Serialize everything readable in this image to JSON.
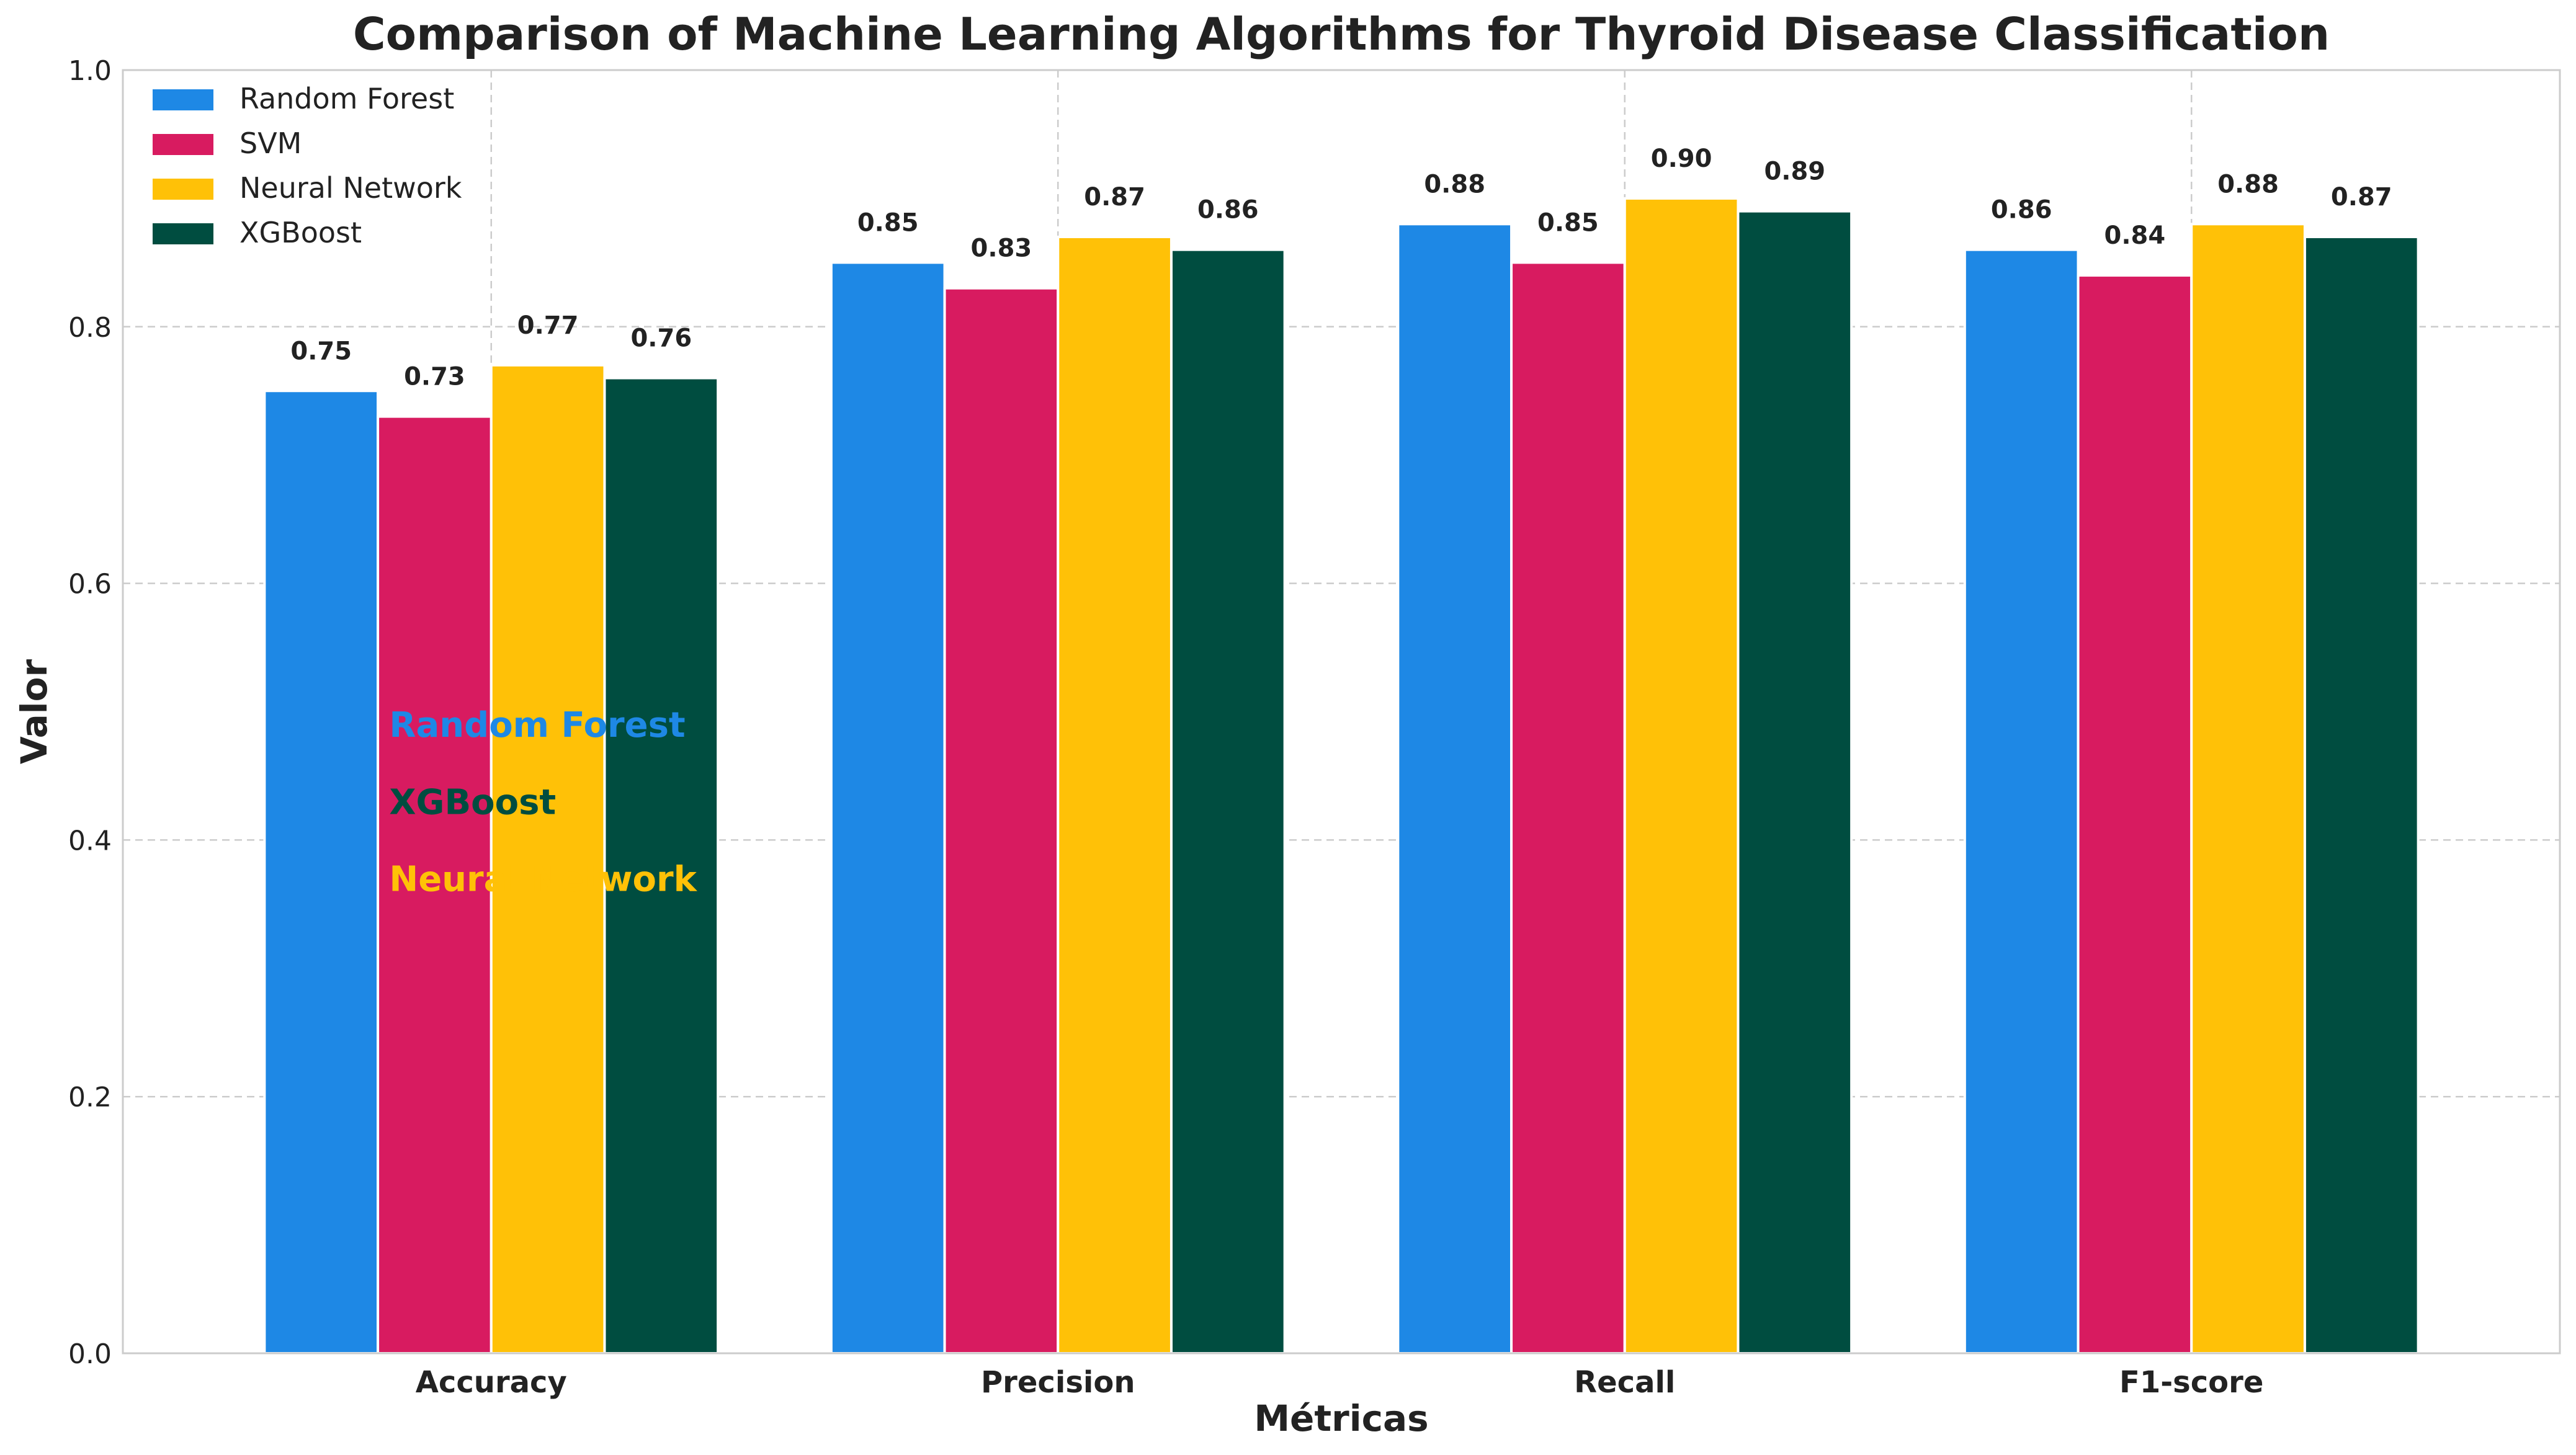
{
  "chart_data": {
    "type": "bar",
    "title": "Comparison of Machine Learning Algorithms for Thyroid Disease Classification",
    "xlabel": "Métricas",
    "ylabel": "Valor",
    "ylim": [
      0,
      1.0
    ],
    "yticks": [
      "0.0",
      "0.2",
      "0.4",
      "0.6",
      "0.8",
      "1.0"
    ],
    "ytick_values": [
      0.0,
      0.2,
      0.4,
      0.6,
      0.8,
      1.0
    ],
    "categories": [
      "Accuracy",
      "Precision",
      "Recall",
      "F1-score"
    ],
    "grid": true,
    "legend_position": "top-left",
    "series": [
      {
        "name": "Random Forest",
        "color": "#1E88E5",
        "values": [
          0.75,
          0.85,
          0.88,
          0.86
        ],
        "labels": [
          "0.75",
          "0.85",
          "0.88",
          "0.86"
        ]
      },
      {
        "name": "SVM",
        "color": "#D81B60",
        "values": [
          0.73,
          0.83,
          0.85,
          0.84
        ],
        "labels": [
          "0.73",
          "0.83",
          "0.85",
          "0.84"
        ]
      },
      {
        "name": "Neural Network",
        "color": "#FFC107",
        "values": [
          0.77,
          0.87,
          0.9,
          0.88
        ],
        "labels": [
          "0.77",
          "0.87",
          "0.90",
          "0.88"
        ]
      },
      {
        "name": "XGBoost",
        "color": "#004D40",
        "values": [
          0.76,
          0.86,
          0.89,
          0.87
        ],
        "labels": [
          "0.76",
          "0.86",
          "0.89",
          "0.87"
        ]
      }
    ],
    "annotations": [
      {
        "text": "Random Forest",
        "color": "#1E88E5",
        "y": 0.49
      },
      {
        "text": "XGBoost",
        "color": "#004D40",
        "y": 0.43
      },
      {
        "text": "Neural Network",
        "color": "#FFC107",
        "y": 0.37
      }
    ]
  }
}
